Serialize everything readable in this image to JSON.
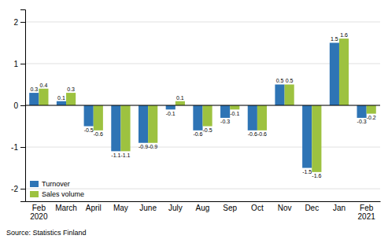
{
  "chart_data": {
    "type": "bar",
    "categories": [
      "Feb\n2020",
      "March",
      "April",
      "May",
      "June",
      "July",
      "Aug",
      "Sep",
      "Oct",
      "Nov",
      "Dec",
      "Jan",
      "Feb\n2021"
    ],
    "series": [
      {
        "name": "Turnover",
        "color": "#2e74b5",
        "values": [
          0.3,
          0.1,
          -0.5,
          -1.1,
          -0.9,
          -0.1,
          -0.6,
          -0.3,
          -0.6,
          0.5,
          -1.5,
          1.5,
          -0.3
        ]
      },
      {
        "name": "Sales volume",
        "color": "#9dc240",
        "values": [
          0.4,
          0.3,
          -0.6,
          -1.1,
          -0.9,
          0.1,
          -0.5,
          -0.1,
          -0.6,
          0.5,
          -1.6,
          1.6,
          -0.2
        ]
      }
    ],
    "ylim": [
      -2.3,
      2.3
    ],
    "yticks": [
      -2,
      -1,
      0,
      1,
      2
    ],
    "grid": true,
    "legend": "lower left",
    "data_labels": true,
    "annotations": [
      "Source: Statistics Finland"
    ]
  }
}
